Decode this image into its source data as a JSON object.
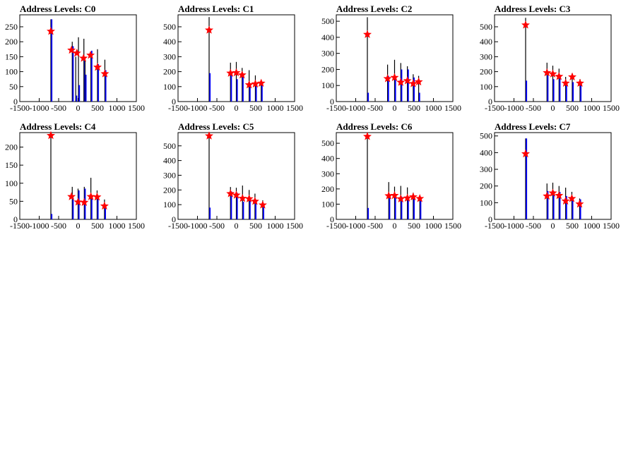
{
  "chart_data": [
    {
      "type": "bar",
      "title": "Address Levels: C0",
      "xlim": [
        -1500,
        1500
      ],
      "ylim": [
        0,
        290
      ],
      "xticks": [
        -1500,
        -1000,
        -500,
        0,
        500,
        1000,
        1500
      ],
      "yticks": [
        0,
        50,
        100,
        150,
        200,
        250
      ],
      "bars": [
        {
          "x": -700,
          "black": 275,
          "blue": 275
        },
        {
          "x": -150,
          "black": 200,
          "blue": 185
        },
        {
          "x": -60,
          "black": 150,
          "blue": 20
        },
        {
          "x": 10,
          "black": 215,
          "blue": 55
        },
        {
          "x": 150,
          "black": 210,
          "blue": 150
        },
        {
          "x": 180,
          "black": 140,
          "blue": 90
        },
        {
          "x": 330,
          "black": 150,
          "blue": 170
        },
        {
          "x": 500,
          "black": 175,
          "blue": 125
        },
        {
          "x": 690,
          "black": 140,
          "blue": 105
        }
      ],
      "peaks": [
        {
          "x": -700,
          "y": 235
        },
        {
          "x": -170,
          "y": 172
        },
        {
          "x": -30,
          "y": 162
        },
        {
          "x": 140,
          "y": 145
        },
        {
          "x": 320,
          "y": 155
        },
        {
          "x": 500,
          "y": 115
        },
        {
          "x": 690,
          "y": 93
        }
      ]
    },
    {
      "type": "bar",
      "title": "Address Levels: C1",
      "xlim": [
        -1500,
        1500
      ],
      "ylim": [
        0,
        580
      ],
      "xticks": [
        -1500,
        -1000,
        -500,
        0,
        500,
        1000,
        1500
      ],
      "yticks": [
        0,
        100,
        200,
        300,
        400,
        500
      ],
      "bars": [
        {
          "x": -700,
          "black": 565,
          "blue": 190
        },
        {
          "x": -150,
          "black": 260,
          "blue": 200
        },
        {
          "x": 0,
          "black": 265,
          "blue": 150
        },
        {
          "x": 150,
          "black": 225,
          "blue": 180
        },
        {
          "x": 330,
          "black": 210,
          "blue": 120
        },
        {
          "x": 490,
          "black": 175,
          "blue": 120
        },
        {
          "x": 640,
          "black": 145,
          "blue": 130
        }
      ],
      "peaks": [
        {
          "x": -700,
          "y": 478
        },
        {
          "x": -150,
          "y": 190
        },
        {
          "x": 0,
          "y": 193
        },
        {
          "x": 150,
          "y": 178
        },
        {
          "x": 330,
          "y": 112
        },
        {
          "x": 490,
          "y": 118
        },
        {
          "x": 640,
          "y": 123
        }
      ]
    },
    {
      "type": "bar",
      "title": "Address Levels: C2",
      "xlim": [
        -1500,
        1500
      ],
      "ylim": [
        0,
        540
      ],
      "xticks": [
        -1500,
        -1000,
        -500,
        0,
        500,
        1000,
        1500
      ],
      "yticks": [
        0,
        100,
        200,
        300,
        400,
        500
      ],
      "bars": [
        {
          "x": -700,
          "black": 525,
          "blue": 55
        },
        {
          "x": -180,
          "black": 230,
          "blue": 160
        },
        {
          "x": 0,
          "black": 260,
          "blue": 150
        },
        {
          "x": 160,
          "black": 240,
          "blue": 200
        },
        {
          "x": 330,
          "black": 220,
          "blue": 200
        },
        {
          "x": 480,
          "black": 170,
          "blue": 150
        },
        {
          "x": 620,
          "black": 160,
          "blue": 55
        }
      ],
      "peaks": [
        {
          "x": -700,
          "y": 418
        },
        {
          "x": -180,
          "y": 143
        },
        {
          "x": 0,
          "y": 150
        },
        {
          "x": 160,
          "y": 120
        },
        {
          "x": 330,
          "y": 130
        },
        {
          "x": 480,
          "y": 112
        },
        {
          "x": 620,
          "y": 123
        }
      ]
    },
    {
      "type": "bar",
      "title": "Address Levels: C3",
      "xlim": [
        -1500,
        1500
      ],
      "ylim": [
        0,
        580
      ],
      "xticks": [
        -1500,
        -1000,
        -500,
        0,
        500,
        1000,
        1500
      ],
      "yticks": [
        0,
        100,
        200,
        300,
        400,
        500
      ],
      "bars": [
        {
          "x": -700,
          "black": 560,
          "blue": 140
        },
        {
          "x": -150,
          "black": 260,
          "blue": 175
        },
        {
          "x": 0,
          "black": 240,
          "blue": 150
        },
        {
          "x": 160,
          "black": 220,
          "blue": 160
        },
        {
          "x": 330,
          "black": 165,
          "blue": 110
        },
        {
          "x": 500,
          "black": 190,
          "blue": 130
        },
        {
          "x": 700,
          "black": 150,
          "blue": 110
        }
      ],
      "peaks": [
        {
          "x": -700,
          "y": 512
        },
        {
          "x": -150,
          "y": 193
        },
        {
          "x": 0,
          "y": 185
        },
        {
          "x": 160,
          "y": 168
        },
        {
          "x": 330,
          "y": 123
        },
        {
          "x": 500,
          "y": 165
        },
        {
          "x": 700,
          "y": 123
        }
      ]
    },
    {
      "type": "bar",
      "title": "Address Levels: C4",
      "xlim": [
        -1500,
        1500
      ],
      "ylim": [
        0,
        240
      ],
      "xticks": [
        -1500,
        -1000,
        -500,
        0,
        500,
        1000,
        1500
      ],
      "yticks": [
        0,
        50,
        100,
        150,
        200
      ],
      "bars": [
        {
          "x": -700,
          "black": 232,
          "blue": 15
        },
        {
          "x": -150,
          "black": 90,
          "blue": 60
        },
        {
          "x": 0,
          "black": 85,
          "blue": 80
        },
        {
          "x": 160,
          "black": 90,
          "blue": 85
        },
        {
          "x": 330,
          "black": 115,
          "blue": 60
        },
        {
          "x": 490,
          "black": 80,
          "blue": 65
        },
        {
          "x": 680,
          "black": 55,
          "blue": 40
        }
      ],
      "peaks": [
        {
          "x": -700,
          "y": 232
        },
        {
          "x": -170,
          "y": 63
        },
        {
          "x": 0,
          "y": 48
        },
        {
          "x": 160,
          "y": 47
        },
        {
          "x": 330,
          "y": 63
        },
        {
          "x": 490,
          "y": 62
        },
        {
          "x": 680,
          "y": 37
        }
      ]
    },
    {
      "type": "bar",
      "title": "Address Levels: C5",
      "xlim": [
        -1500,
        1500
      ],
      "ylim": [
        0,
        590
      ],
      "xticks": [
        -1500,
        -1000,
        -500,
        0,
        500,
        1000,
        1500
      ],
      "yticks": [
        0,
        100,
        200,
        300,
        400,
        500
      ],
      "bars": [
        {
          "x": -700,
          "black": 580,
          "blue": 80
        },
        {
          "x": -150,
          "black": 220,
          "blue": 190
        },
        {
          "x": 0,
          "black": 215,
          "blue": 180
        },
        {
          "x": 160,
          "black": 230,
          "blue": 120
        },
        {
          "x": 330,
          "black": 200,
          "blue": 140
        },
        {
          "x": 480,
          "black": 175,
          "blue": 130
        },
        {
          "x": 680,
          "black": 130,
          "blue": 90
        }
      ],
      "peaks": [
        {
          "x": -700,
          "y": 568
        },
        {
          "x": -150,
          "y": 175
        },
        {
          "x": 0,
          "y": 165
        },
        {
          "x": 160,
          "y": 143
        },
        {
          "x": 330,
          "y": 140
        },
        {
          "x": 480,
          "y": 123
        },
        {
          "x": 680,
          "y": 98
        }
      ]
    },
    {
      "type": "bar",
      "title": "Address Levels: C6",
      "xlim": [
        -1500,
        1500
      ],
      "ylim": [
        0,
        570
      ],
      "xticks": [
        -1500,
        -1000,
        -500,
        0,
        500,
        1000,
        1500
      ],
      "yticks": [
        0,
        100,
        200,
        300,
        400,
        500
      ],
      "bars": [
        {
          "x": -700,
          "black": 560,
          "blue": 75
        },
        {
          "x": -150,
          "black": 245,
          "blue": 160
        },
        {
          "x": 0,
          "black": 215,
          "blue": 160
        },
        {
          "x": 160,
          "black": 220,
          "blue": 150
        },
        {
          "x": 330,
          "black": 210,
          "blue": 150
        },
        {
          "x": 480,
          "black": 175,
          "blue": 140
        },
        {
          "x": 650,
          "black": 160,
          "blue": 130
        }
      ],
      "peaks": [
        {
          "x": -700,
          "y": 545
        },
        {
          "x": -150,
          "y": 155
        },
        {
          "x": 0,
          "y": 157
        },
        {
          "x": 160,
          "y": 135
        },
        {
          "x": 330,
          "y": 140
        },
        {
          "x": 480,
          "y": 148
        },
        {
          "x": 650,
          "y": 137
        }
      ]
    },
    {
      "type": "bar",
      "title": "Address Levels: C7",
      "xlim": [
        -1500,
        1500
      ],
      "ylim": [
        0,
        520
      ],
      "xticks": [
        -1500,
        -1000,
        -500,
        0,
        500,
        1000,
        1500
      ],
      "yticks": [
        0,
        100,
        200,
        300,
        400,
        500
      ],
      "bars": [
        {
          "x": -700,
          "black": 485,
          "blue": 485
        },
        {
          "x": -150,
          "black": 215,
          "blue": 170
        },
        {
          "x": 0,
          "black": 220,
          "blue": 170
        },
        {
          "x": 160,
          "black": 200,
          "blue": 165
        },
        {
          "x": 330,
          "black": 190,
          "blue": 140
        },
        {
          "x": 490,
          "black": 165,
          "blue": 130
        },
        {
          "x": 690,
          "black": 125,
          "blue": 120
        }
      ],
      "peaks": [
        {
          "x": -700,
          "y": 393
        },
        {
          "x": -150,
          "y": 140
        },
        {
          "x": 0,
          "y": 158
        },
        {
          "x": 160,
          "y": 143
        },
        {
          "x": 330,
          "y": 110
        },
        {
          "x": 490,
          "y": 125
        },
        {
          "x": 690,
          "y": 92
        }
      ]
    }
  ]
}
